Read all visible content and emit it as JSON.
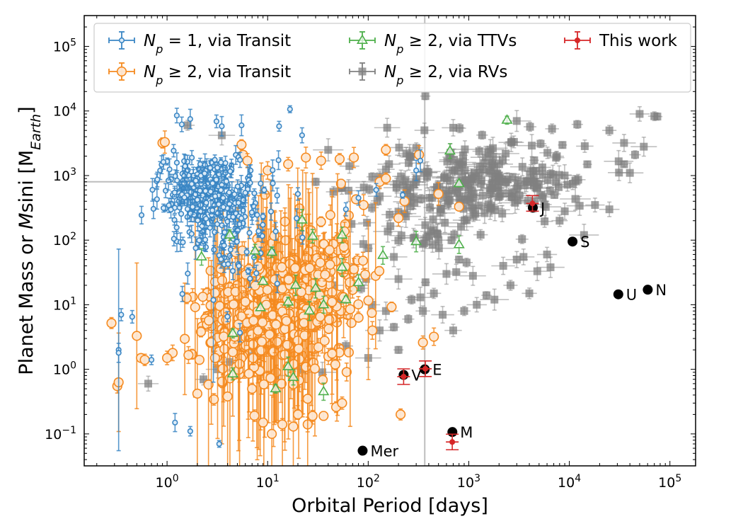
{
  "chart_data": {
    "type": "scatter",
    "x_scale": "log",
    "y_scale": "log",
    "xlim": [
      0.15,
      180000
    ],
    "ylim": [
      0.032,
      300000
    ],
    "grid": false,
    "legend_placement": "top",
    "xlabel": "Orbital Period [days]",
    "ylabel_parts": [
      "Planet Mass or ",
      "M",
      "sini [M",
      "Earth",
      "]"
    ],
    "x_ticks": [
      {
        "value": 1,
        "mant": "10",
        "exp": "0"
      },
      {
        "value": 10,
        "mant": "10",
        "exp": "1"
      },
      {
        "value": 100,
        "mant": "10",
        "exp": "2"
      },
      {
        "value": 1000,
        "mant": "10",
        "exp": "3"
      },
      {
        "value": 10000,
        "mant": "10",
        "exp": "4"
      },
      {
        "value": 100000,
        "mant": "10",
        "exp": "5"
      }
    ],
    "y_ticks": [
      {
        "value": 0.1,
        "mant": "10",
        "exp": "−1"
      },
      {
        "value": 1,
        "mant": "10",
        "exp": "0"
      },
      {
        "value": 10,
        "mant": "10",
        "exp": "1"
      },
      {
        "value": 100,
        "mant": "10",
        "exp": "2"
      },
      {
        "value": 1000,
        "mant": "10",
        "exp": "3"
      },
      {
        "value": 10000,
        "mant": "10",
        "exp": "4"
      },
      {
        "value": 100000,
        "mant": "10",
        "exp": "5"
      }
    ],
    "reference_lines": {
      "x": 365,
      "y": 800,
      "color": "#bdbdbd"
    },
    "colors": {
      "single_transit": "#3a86c4",
      "multi_transit": "#f58a1f",
      "ttv": "#4daf4a",
      "rv": "#808080",
      "this_work": "#d62728",
      "solar": "#000000"
    },
    "legend": [
      {
        "key": "single_transit",
        "parts": [
          "N",
          "p",
          " = 1, via Transit"
        ],
        "marker": "circle-small"
      },
      {
        "key": "multi_transit",
        "parts": [
          "N",
          "p",
          " ≥ 2, via Transit"
        ],
        "marker": "circle-open"
      },
      {
        "key": "ttv",
        "parts": [
          "N",
          "p",
          " ≥ 2, via TTVs"
        ],
        "marker": "triangle-open"
      },
      {
        "key": "rv",
        "parts": [
          "N",
          "p",
          " ≥ 2, via RVs"
        ],
        "marker": "square"
      },
      {
        "key": "this_work",
        "parts": [
          "This work"
        ],
        "marker": "dot-red"
      }
    ],
    "series": [
      {
        "key": "single_transit",
        "marker": "circle-small",
        "color": "#3a86c4",
        "cloud": {
          "count": 320,
          "seed": 11,
          "clusters": [
            {
              "lx": 0.35,
              "ly": 2.75,
              "sx": 0.22,
              "sy": 0.28,
              "w": 0.6
            },
            {
              "lx": 0.6,
              "ly": 2.3,
              "sx": 0.3,
              "sy": 0.5,
              "w": 0.4
            }
          ]
        },
        "points": [
          [
            0.33,
            2.0
          ],
          [
            0.33,
            1.8
          ],
          [
            0.35,
            7
          ],
          [
            1.25,
            8500
          ],
          [
            1.4,
            6200
          ],
          [
            1.7,
            7500
          ],
          [
            3.1,
            6900
          ],
          [
            5.5,
            6000
          ],
          [
            3.5,
            5800
          ],
          [
            13,
            5800
          ],
          [
            22,
            4200
          ],
          [
            1.2,
            0.15
          ],
          [
            1.7,
            0.11
          ],
          [
            3.3,
            0.07
          ],
          [
            0.7,
            1.4
          ],
          [
            0.45,
            6.5
          ],
          [
            60,
            300
          ],
          [
            80,
            450
          ],
          [
            120,
            600
          ],
          [
            220,
            500
          ],
          [
            300,
            1200
          ],
          [
            330,
            1700
          ]
        ]
      },
      {
        "key": "multi_transit",
        "marker": "circle-open",
        "color": "#f58a1f",
        "cloud": {
          "count": 560,
          "seed": 23,
          "clusters": [
            {
              "lx": 1.0,
              "ly": 0.75,
              "sx": 0.35,
              "sy": 0.45,
              "w": 0.65
            },
            {
              "lx": 1.35,
              "ly": 1.4,
              "sx": 0.3,
              "sy": 0.45,
              "w": 0.35
            }
          ]
        },
        "points": [
          [
            0.28,
            5.2
          ],
          [
            0.32,
            0.55
          ],
          [
            0.33,
            0.63
          ],
          [
            0.5,
            3.3
          ],
          [
            0.55,
            1.5
          ],
          [
            0.9,
            3200
          ],
          [
            0.95,
            3300
          ],
          [
            5.5,
            3000
          ],
          [
            5.7,
            2100
          ],
          [
            6.3,
            1700
          ],
          [
            10,
            1200
          ],
          [
            16,
            1500
          ],
          [
            24,
            1900
          ],
          [
            34,
            1700
          ],
          [
            52,
            1800
          ],
          [
            72,
            1900
          ],
          [
            150,
            2500
          ],
          [
            320,
            2100
          ],
          [
            800,
            330
          ],
          [
            500,
            520
          ],
          [
            230,
            400
          ],
          [
            200,
            220
          ],
          [
            90,
            350
          ],
          [
            130,
            800
          ],
          [
            150,
            900
          ],
          [
            11,
            0.1
          ],
          [
            9,
            0.15
          ],
          [
            14,
            0.14
          ],
          [
            18,
            0.13
          ],
          [
            20,
            0.2
          ],
          [
            25,
            0.14
          ],
          [
            28,
            0.19
          ],
          [
            36,
            0.19
          ],
          [
            48,
            0.26
          ],
          [
            55,
            0.3
          ],
          [
            25,
            0.35
          ],
          [
            210,
            0.2
          ],
          [
            450,
            3.2
          ],
          [
            350,
            2.6
          ],
          [
            2.0,
            0.42
          ],
          [
            4.0,
            0.38
          ],
          [
            7.0,
            0.5
          ],
          [
            32,
            2.2
          ],
          [
            110,
            4
          ],
          [
            0.6,
            1.4
          ],
          [
            1.0,
            1.5
          ],
          [
            2.1,
            1.4
          ],
          [
            3.0,
            1.5
          ]
        ]
      },
      {
        "key": "ttv",
        "marker": "triangle-open",
        "color": "#4daf4a",
        "points": [
          [
            2400,
            7200
          ],
          [
            650,
            2400
          ],
          [
            800,
            750
          ],
          [
            800,
            85
          ],
          [
            300,
            95
          ],
          [
            55,
            120
          ],
          [
            22,
            205
          ],
          [
            28,
            115
          ],
          [
            4.2,
            120
          ],
          [
            7.5,
            68
          ],
          [
            2.2,
            55
          ],
          [
            9,
            23
          ],
          [
            8.5,
            9
          ],
          [
            4.5,
            3.6
          ],
          [
            19,
            20
          ],
          [
            16,
            11
          ],
          [
            30,
            18
          ],
          [
            36,
            10
          ],
          [
            36,
            0.45
          ],
          [
            55,
            38
          ],
          [
            80,
            22
          ],
          [
            60,
            12
          ],
          [
            140,
            58
          ],
          [
            16,
            1.1
          ],
          [
            18,
            0.75
          ],
          [
            12,
            0.5
          ],
          [
            4.5,
            0.85
          ],
          [
            11,
            65
          ],
          [
            26,
            8
          ]
        ]
      },
      {
        "key": "rv",
        "marker": "square",
        "color": "#808080",
        "cloud": {
          "count": 260,
          "seed": 37,
          "clusters": [
            {
              "lx": 3.25,
              "ly": 2.95,
              "sx": 0.45,
              "sy": 0.33,
              "w": 0.7
            },
            {
              "lx": 2.6,
              "ly": 2.5,
              "sx": 0.35,
              "sy": 0.4,
              "w": 0.3
            }
          ]
        },
        "points": [
          [
            370,
            17000
          ],
          [
            50000,
            9000
          ],
          [
            75000,
            8200
          ],
          [
            70000,
            8300
          ],
          [
            25000,
            5000
          ],
          [
            35000,
            3200
          ],
          [
            3000,
            7000
          ],
          [
            12000,
            6200
          ],
          [
            700,
            5500
          ],
          [
            1.6,
            6000
          ],
          [
            3.5,
            4200
          ],
          [
            65,
            1400
          ],
          [
            40,
            2500
          ],
          [
            30,
            800
          ],
          [
            0.65,
            0.6
          ],
          [
            2.3,
            0.7
          ],
          [
            3.2,
            1.0
          ],
          [
            4.2,
            1.3
          ],
          [
            7,
            1.6
          ],
          [
            12,
            0.8
          ],
          [
            22,
            1.0
          ],
          [
            35,
            0.9
          ],
          [
            60,
            2.3
          ],
          [
            100,
            1.5
          ],
          [
            130,
            4.0
          ],
          [
            180,
            4.5
          ],
          [
            200,
            2.0
          ],
          [
            110,
            10
          ],
          [
            150,
            8
          ],
          [
            250,
            6
          ],
          [
            350,
            8
          ],
          [
            550,
            7
          ],
          [
            700,
            4
          ],
          [
            900,
            8
          ],
          [
            1200,
            10
          ],
          [
            1500,
            14
          ],
          [
            1800,
            12
          ],
          [
            2600,
            20
          ],
          [
            4000,
            15
          ],
          [
            4800,
            33
          ],
          [
            6500,
            38
          ],
          [
            450,
            15
          ],
          [
            330,
            13
          ],
          [
            270,
            12
          ],
          [
            50,
            11
          ],
          [
            45,
            20
          ],
          [
            70,
            30
          ],
          [
            85,
            18
          ],
          [
            40,
            60
          ],
          [
            100,
            75
          ],
          [
            180,
            55
          ],
          [
            200,
            25
          ],
          [
            95,
            25
          ],
          [
            290,
            110
          ],
          [
            500,
            100
          ],
          [
            360,
            90
          ],
          [
            800,
            50
          ],
          [
            950,
            45
          ],
          [
            1100,
            28
          ],
          [
            600,
            30
          ],
          [
            750,
            32
          ],
          [
            2200,
            40
          ],
          [
            3000,
            50
          ],
          [
            3500,
            55
          ],
          [
            6000,
            60
          ],
          [
            8000,
            200
          ],
          [
            9000,
            280
          ],
          [
            14000,
            120
          ],
          [
            18000,
            350
          ],
          [
            25000,
            300
          ],
          [
            35000,
            1500
          ],
          [
            40000,
            1100
          ],
          [
            55000,
            2800
          ],
          [
            45000,
            2100
          ]
        ]
      },
      {
        "key": "this_work",
        "marker": "dot-red",
        "color": "#d62728",
        "points": [
          [
            4300,
            370
          ],
          [
            225,
            0.77
          ],
          [
            370,
            1.02
          ],
          [
            685,
            0.075
          ]
        ]
      }
    ],
    "solar_system": [
      {
        "name": "Mer",
        "x": 88,
        "y": 0.055,
        "label": "Mer"
      },
      {
        "name": "V",
        "x": 225,
        "y": 0.82,
        "label": "V"
      },
      {
        "name": "E",
        "x": 365,
        "y": 1.0,
        "label": "E"
      },
      {
        "name": "M",
        "x": 687,
        "y": 0.107,
        "label": "M"
      },
      {
        "name": "J",
        "x": 4333,
        "y": 318,
        "label": "J"
      },
      {
        "name": "S",
        "x": 10759,
        "y": 95,
        "label": "S"
      },
      {
        "name": "U",
        "x": 30687,
        "y": 14.5,
        "label": "U"
      },
      {
        "name": "N",
        "x": 60190,
        "y": 17.1,
        "label": "N"
      }
    ]
  }
}
